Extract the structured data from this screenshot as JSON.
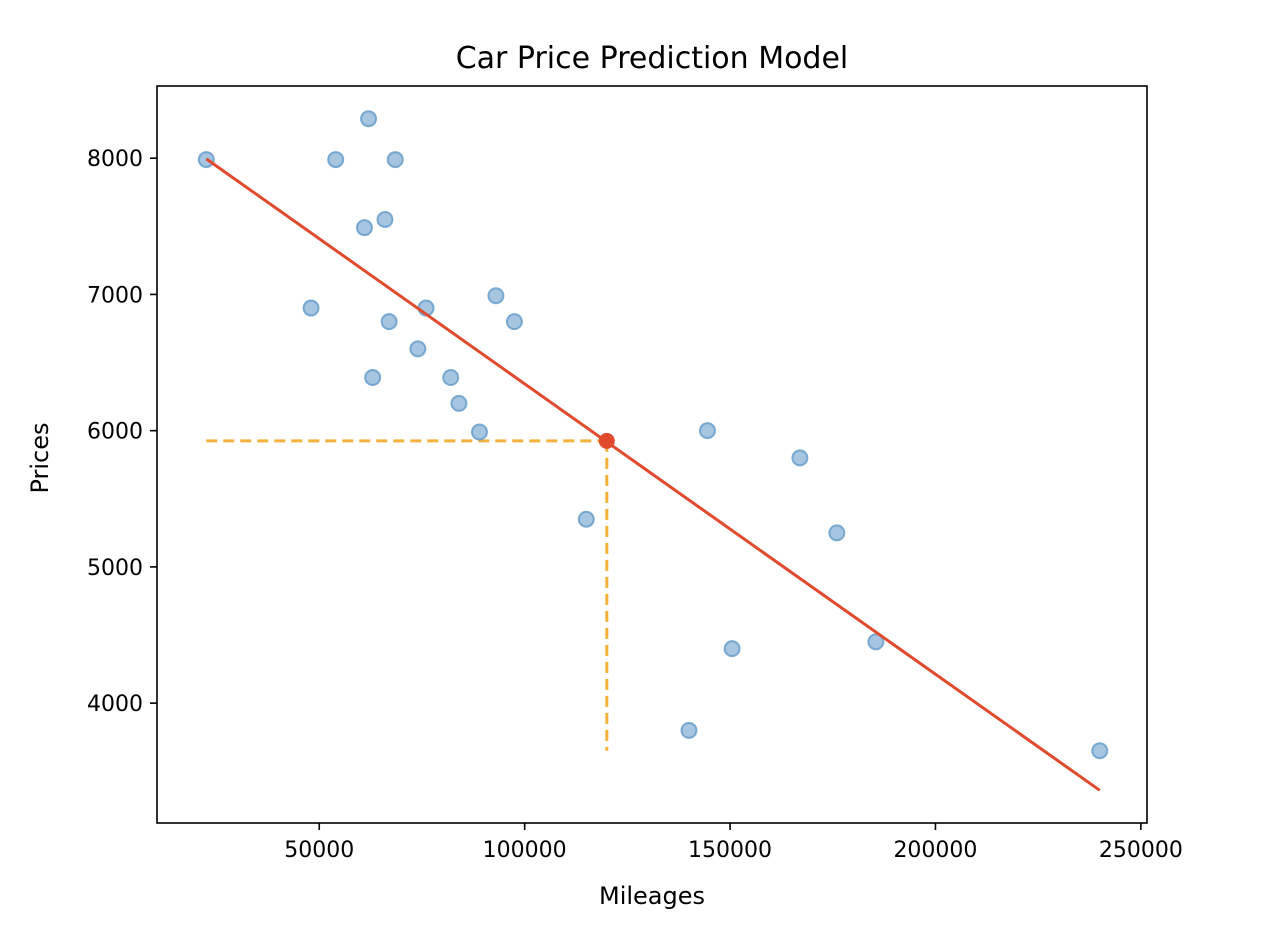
{
  "chart_data": {
    "type": "scatter",
    "title": "Car Price Prediction Model",
    "xlabel": "Mileages",
    "ylabel": "Prices",
    "xlim": [
      10500,
      251500
    ],
    "ylim": [
      3120,
      8530
    ],
    "xticks": [
      50000,
      100000,
      150000,
      200000,
      250000
    ],
    "yticks": [
      4000,
      5000,
      6000,
      7000,
      8000
    ],
    "grid": false,
    "colors": {
      "points": "#5b95c6",
      "regression": "#e24a2d",
      "guide": "#f4b23c",
      "frame": "#000000"
    },
    "points": [
      {
        "x": 22500,
        "y": 7990
      },
      {
        "x": 48000,
        "y": 6900
      },
      {
        "x": 54000,
        "y": 7990
      },
      {
        "x": 61000,
        "y": 7490
      },
      {
        "x": 62000,
        "y": 8290
      },
      {
        "x": 63000,
        "y": 6390
      },
      {
        "x": 66000,
        "y": 7550
      },
      {
        "x": 67000,
        "y": 6800
      },
      {
        "x": 68500,
        "y": 7990
      },
      {
        "x": 74000,
        "y": 6600
      },
      {
        "x": 76000,
        "y": 6900
      },
      {
        "x": 82000,
        "y": 6390
      },
      {
        "x": 84000,
        "y": 6200
      },
      {
        "x": 89000,
        "y": 5990
      },
      {
        "x": 93000,
        "y": 6990
      },
      {
        "x": 97500,
        "y": 6800
      },
      {
        "x": 115000,
        "y": 5350
      },
      {
        "x": 140000,
        "y": 3800
      },
      {
        "x": 144500,
        "y": 6000
      },
      {
        "x": 150500,
        "y": 4400
      },
      {
        "x": 167000,
        "y": 5800
      },
      {
        "x": 176000,
        "y": 5250
      },
      {
        "x": 185500,
        "y": 4450
      },
      {
        "x": 240000,
        "y": 3650
      }
    ],
    "regression_line": {
      "x": [
        22500,
        240000
      ],
      "y": [
        7995,
        3360
      ]
    },
    "prediction": {
      "x": 120000,
      "y": 5925
    },
    "guide_lines": {
      "x_start": 22500,
      "y_bottom": 3650
    }
  }
}
